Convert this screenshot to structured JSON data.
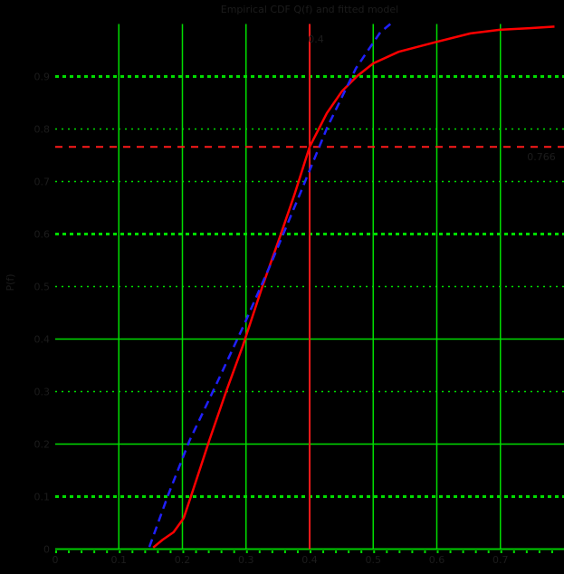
{
  "title": "Empirical CDF Q(f) and fitted model",
  "ylabel": "P(f)",
  "colors": {
    "background": "#000000",
    "grid_green": "#00dd00",
    "axis_green": "#00cc00",
    "empirical_red": "#ff0000",
    "fit_blue": "#2020ff",
    "marker_red": "#ff1a1a",
    "text_dim": "#1c1c1c"
  },
  "chart_data": {
    "type": "line",
    "title": "Empirical CDF Q(f) and fitted model",
    "xlabel": "",
    "ylabel": "P(f)",
    "xlim": [
      0,
      0.8
    ],
    "ylim": [
      0,
      1
    ],
    "grid": "green major and minor gridlines on black background",
    "legend_position": "none",
    "xticks": [
      {
        "v": 0,
        "label": "0"
      },
      {
        "v": 0.1,
        "label": "0.1"
      },
      {
        "v": 0.2,
        "label": "0.2"
      },
      {
        "v": 0.3,
        "label": "0.3"
      },
      {
        "v": 0.4,
        "label": "0.4"
      },
      {
        "v": 0.5,
        "label": "0.5"
      },
      {
        "v": 0.6,
        "label": "0.6"
      },
      {
        "v": 0.7,
        "label": "0.7"
      }
    ],
    "yticks": [
      {
        "v": 0,
        "label": "0",
        "style": "axis"
      },
      {
        "v": 0.1,
        "label": "0.1",
        "style": "dot-bold"
      },
      {
        "v": 0.2,
        "label": "0.2",
        "style": "solid"
      },
      {
        "v": 0.3,
        "label": "0.3",
        "style": "dot-thin"
      },
      {
        "v": 0.4,
        "label": "0.4",
        "style": "solid"
      },
      {
        "v": 0.5,
        "label": "0.5",
        "style": "dot-thin"
      },
      {
        "v": 0.6,
        "label": "0.6",
        "style": "dot-bold"
      },
      {
        "v": 0.7,
        "label": "0.7",
        "style": "dot-thin"
      },
      {
        "v": 0.8,
        "label": "0.8",
        "style": "dot-thin"
      },
      {
        "v": 0.9,
        "label": "0.9",
        "style": "dot-bold"
      }
    ],
    "minor_xtick_step": 0.02,
    "series": [
      {
        "name": "empirical-cdf",
        "color": "#ff0000",
        "style": "solid",
        "points": [
          [
            0.154,
            0.003
          ],
          [
            0.169,
            0.018
          ],
          [
            0.186,
            0.032
          ],
          [
            0.202,
            0.059
          ],
          [
            0.215,
            0.106
          ],
          [
            0.229,
            0.158
          ],
          [
            0.242,
            0.206
          ],
          [
            0.269,
            0.301
          ],
          [
            0.295,
            0.387
          ],
          [
            0.326,
            0.501
          ],
          [
            0.354,
            0.597
          ],
          [
            0.377,
            0.678
          ],
          [
            0.4,
            0.766
          ],
          [
            0.427,
            0.83
          ],
          [
            0.451,
            0.872
          ],
          [
            0.475,
            0.901
          ],
          [
            0.5,
            0.925
          ],
          [
            0.54,
            0.947
          ],
          [
            0.6,
            0.966
          ],
          [
            0.653,
            0.982
          ],
          [
            0.699,
            0.989
          ],
          [
            0.746,
            0.992
          ],
          [
            0.785,
            0.995
          ]
        ]
      },
      {
        "name": "fitted-model",
        "color": "#2020ff",
        "style": "dashed",
        "points": [
          [
            0.148,
            0.004
          ],
          [
            0.177,
            0.101
          ],
          [
            0.211,
            0.206
          ],
          [
            0.253,
            0.313
          ],
          [
            0.298,
            0.43
          ],
          [
            0.34,
            0.546
          ],
          [
            0.386,
            0.68
          ],
          [
            0.428,
            0.804
          ],
          [
            0.473,
            0.916
          ],
          [
            0.511,
            0.984
          ],
          [
            0.527,
            1.0
          ]
        ]
      }
    ],
    "marker": {
      "x": 0.4,
      "y": 0.766,
      "x_label": "0.4",
      "y_label": "0.766"
    }
  }
}
